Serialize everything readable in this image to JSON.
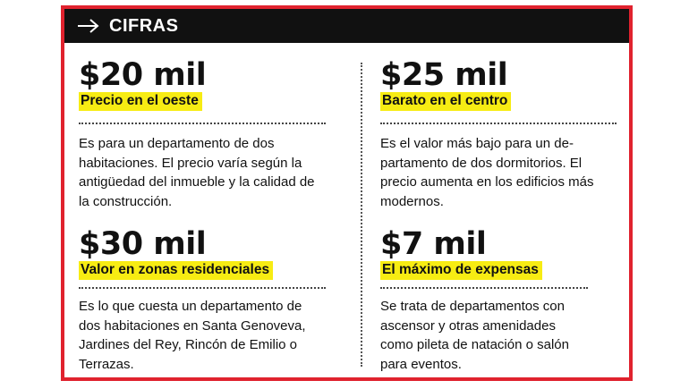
{
  "header": {
    "title": "CIFRAS",
    "icon": "arrow-right-icon",
    "background": "#111111"
  },
  "colors": {
    "frame": "#e0222e",
    "highlight": "#f7ec13"
  },
  "items": [
    {
      "value": "$20 mil",
      "label": "Precio en el oeste",
      "description_lines": [
        "Es para un departamento de dos",
        "habitaciones. El precio varía según la",
        "antigüedad del inmueble y la calidad de",
        "la construcción."
      ]
    },
    {
      "value": "$25 mil",
      "label": "Barato en el centro",
      "description_lines": [
        "Es el valor más bajo para un de-",
        "partamento de dos dormitorios. El",
        "precio aumenta en los edificios más",
        "modernos."
      ]
    },
    {
      "value": "$30 mil",
      "label": "Valor en zonas residenciales",
      "description_lines": [
        "Es lo que cuesta un departamento de",
        "dos habitaciones en Santa Genoveva,",
        "Jardines del Rey, Rincón de Emilio o",
        "Terrazas."
      ]
    },
    {
      "value": "$7 mil",
      "label": "El máximo de expensas",
      "description_lines": [
        "Se trata de departamentos con",
        "ascensor y otras amenidades",
        "como pileta de natación o salón",
        "para eventos."
      ]
    }
  ]
}
